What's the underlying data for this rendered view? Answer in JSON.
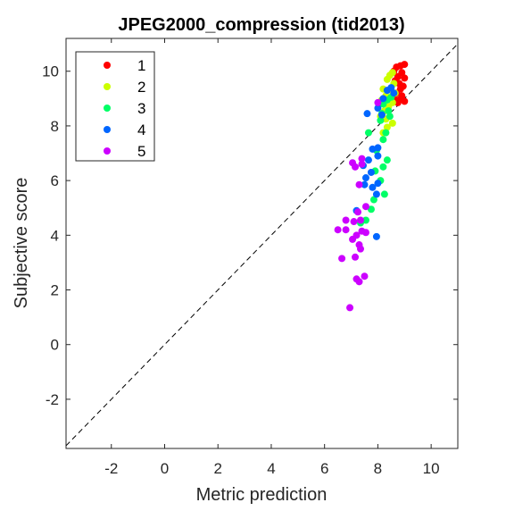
{
  "chart_data": {
    "type": "scatter",
    "title": "JPEG2000_compression (tid2013)",
    "xlabel": "Metric prediction",
    "ylabel": "Subjective score",
    "xlim": [
      -3.7,
      11
    ],
    "ylim": [
      -3.8,
      11.2
    ],
    "xticks": [
      -2,
      0,
      2,
      4,
      6,
      8,
      10
    ],
    "yticks": [
      -2,
      0,
      2,
      4,
      6,
      8,
      10
    ],
    "xtick_labels": [
      "-2",
      "0",
      "2",
      "4",
      "6",
      "8",
      "10"
    ],
    "ytick_labels": [
      "-2",
      "0",
      "2",
      "4",
      "6",
      "8",
      "10"
    ],
    "grid": false,
    "legend_position": "top-left",
    "reference_line": "y = x (dashed black)",
    "series": [
      {
        "name": "1",
        "color": "#ff0000",
        "points": [
          [
            9.0,
            10.25
          ],
          [
            8.85,
            10.2
          ],
          [
            8.7,
            10.15
          ],
          [
            8.6,
            10.0
          ],
          [
            8.9,
            9.95
          ],
          [
            8.75,
            9.8
          ],
          [
            9.0,
            9.75
          ],
          [
            8.65,
            9.65
          ],
          [
            8.8,
            9.55
          ],
          [
            8.95,
            9.45
          ],
          [
            8.85,
            9.35
          ],
          [
            8.7,
            9.2
          ],
          [
            8.9,
            9.1
          ],
          [
            8.6,
            9.05
          ],
          [
            8.8,
            8.95
          ],
          [
            9.0,
            8.9
          ],
          [
            8.75,
            8.85
          ]
        ]
      },
      {
        "name": "2",
        "color": "#ccff00",
        "points": [
          [
            8.55,
            9.95
          ],
          [
            8.45,
            9.85
          ],
          [
            8.35,
            9.7
          ],
          [
            8.6,
            9.55
          ],
          [
            8.2,
            9.35
          ],
          [
            8.5,
            9.3
          ],
          [
            8.65,
            9.2
          ],
          [
            8.3,
            9.1
          ],
          [
            8.15,
            8.95
          ],
          [
            8.55,
            8.85
          ],
          [
            8.4,
            8.7
          ],
          [
            8.25,
            8.55
          ],
          [
            8.1,
            8.35
          ],
          [
            8.3,
            8.25
          ],
          [
            8.55,
            8.1
          ],
          [
            8.35,
            7.95
          ],
          [
            8.2,
            7.75
          ]
        ]
      },
      {
        "name": "3",
        "color": "#00ff66",
        "points": [
          [
            8.5,
            9.05
          ],
          [
            8.35,
            8.95
          ],
          [
            8.2,
            8.8
          ],
          [
            8.4,
            8.55
          ],
          [
            8.15,
            8.45
          ],
          [
            8.45,
            8.35
          ],
          [
            8.1,
            8.2
          ],
          [
            8.3,
            7.75
          ],
          [
            7.65,
            7.75
          ],
          [
            8.2,
            7.5
          ],
          [
            7.95,
            7.1
          ],
          [
            8.35,
            6.75
          ],
          [
            8.2,
            6.5
          ],
          [
            7.9,
            6.35
          ],
          [
            8.1,
            6.0
          ],
          [
            8.25,
            5.5
          ],
          [
            7.85,
            5.3
          ],
          [
            7.75,
            4.95
          ],
          [
            7.55,
            4.55
          ],
          [
            7.35,
            4.45
          ]
        ]
      },
      {
        "name": "4",
        "color": "#0066ff",
        "points": [
          [
            8.5,
            9.4
          ],
          [
            8.35,
            9.3
          ],
          [
            8.6,
            9.2
          ],
          [
            8.2,
            9.0
          ],
          [
            8.0,
            8.65
          ],
          [
            7.6,
            8.45
          ],
          [
            8.15,
            8.4
          ],
          [
            8.0,
            7.2
          ],
          [
            7.8,
            7.15
          ],
          [
            8.0,
            6.9
          ],
          [
            7.65,
            6.75
          ],
          [
            7.45,
            6.55
          ],
          [
            7.75,
            6.3
          ],
          [
            7.55,
            6.1
          ],
          [
            8.0,
            5.9
          ],
          [
            7.8,
            5.75
          ],
          [
            7.5,
            5.85
          ],
          [
            7.95,
            5.5
          ],
          [
            7.2,
            4.9
          ],
          [
            7.95,
            3.95
          ]
        ]
      },
      {
        "name": "5",
        "color": "#cc00ff",
        "points": [
          [
            8.0,
            8.85
          ],
          [
            7.4,
            6.8
          ],
          [
            7.05,
            6.65
          ],
          [
            7.4,
            6.6
          ],
          [
            7.15,
            6.5
          ],
          [
            7.3,
            5.85
          ],
          [
            7.55,
            5.05
          ],
          [
            7.25,
            4.85
          ],
          [
            7.35,
            4.55
          ],
          [
            7.1,
            4.5
          ],
          [
            6.8,
            4.55
          ],
          [
            6.5,
            4.2
          ],
          [
            6.8,
            4.2
          ],
          [
            7.4,
            4.15
          ],
          [
            7.55,
            4.1
          ],
          [
            7.2,
            4.0
          ],
          [
            7.05,
            3.85
          ],
          [
            7.3,
            3.65
          ],
          [
            7.35,
            3.5
          ],
          [
            6.65,
            3.15
          ],
          [
            7.15,
            3.2
          ],
          [
            7.5,
            2.5
          ],
          [
            7.2,
            2.4
          ],
          [
            7.3,
            2.3
          ],
          [
            6.95,
            1.35
          ]
        ]
      }
    ]
  }
}
